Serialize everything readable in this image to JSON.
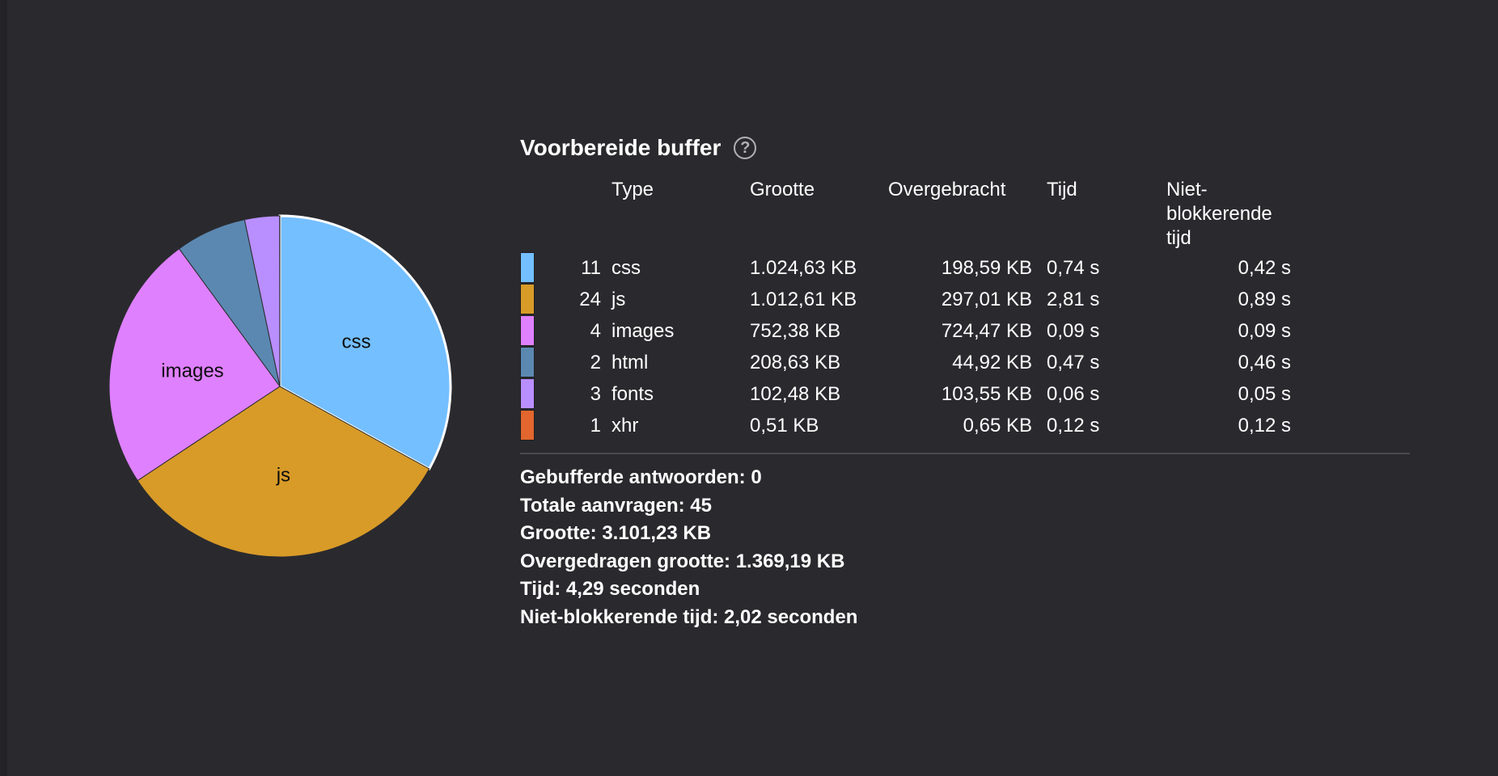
{
  "panel": {
    "title": "Voorbereide buffer",
    "help_icon": "question-circle-icon"
  },
  "table": {
    "headers": {
      "type": "Type",
      "size": "Grootte",
      "transferred": "Overgebracht",
      "time": "Tijd",
      "nonblocking": "Niet-\nblokkerende\ntijd"
    },
    "rows": [
      {
        "color": "#74bfff",
        "count": "11",
        "type": "css",
        "size": "1.024,63 KB",
        "transferred": "198,59 KB",
        "time": "0,74 s",
        "nonblocking": "0,42 s"
      },
      {
        "color": "#d89b28",
        "count": "24",
        "type": "js",
        "size": "1.012,61 KB",
        "transferred": "297,01 KB",
        "time": "2,81 s",
        "nonblocking": "0,89 s"
      },
      {
        "color": "#df80ff",
        "count": "4",
        "type": "images",
        "size": "752,38 KB",
        "transferred": "724,47 KB",
        "time": "0,09 s",
        "nonblocking": "0,09 s"
      },
      {
        "color": "#5b88b1",
        "count": "2",
        "type": "html",
        "size": "208,63 KB",
        "transferred": "44,92 KB",
        "time": "0,47 s",
        "nonblocking": "0,46 s"
      },
      {
        "color": "#b98eff",
        "count": "3",
        "type": "fonts",
        "size": "102,48 KB",
        "transferred": "103,55 KB",
        "time": "0,06 s",
        "nonblocking": "0,05 s"
      },
      {
        "color": "#e2662d",
        "count": "1",
        "type": "xhr",
        "size": "0,51 KB",
        "transferred": "0,65 KB",
        "time": "0,12 s",
        "nonblocking": "0,12 s"
      }
    ]
  },
  "summary": {
    "buffered": "Gebufferde antwoorden: 0",
    "total_requests": "Totale aanvragen: 45",
    "size": "Grootte: 3.101,23 KB",
    "transferred": "Overgedragen grootte: 1.369,19 KB",
    "time": "Tijd: 4,29 seconden",
    "nonblocking": "Niet-blokkerende tijd: 2,02 seconden"
  },
  "chart_data": {
    "type": "pie",
    "categories": [
      "css",
      "js",
      "images",
      "html",
      "fonts",
      "xhr"
    ],
    "values": [
      1024.63,
      1012.61,
      752.38,
      208.63,
      102.48,
      0.51
    ],
    "colors": [
      "#74bfff",
      "#d89b28",
      "#df80ff",
      "#5b88b1",
      "#b98eff",
      "#e2662d"
    ],
    "slice_labels": [
      "css",
      "js",
      "images",
      "",
      "",
      ""
    ],
    "highlighted": "css"
  }
}
